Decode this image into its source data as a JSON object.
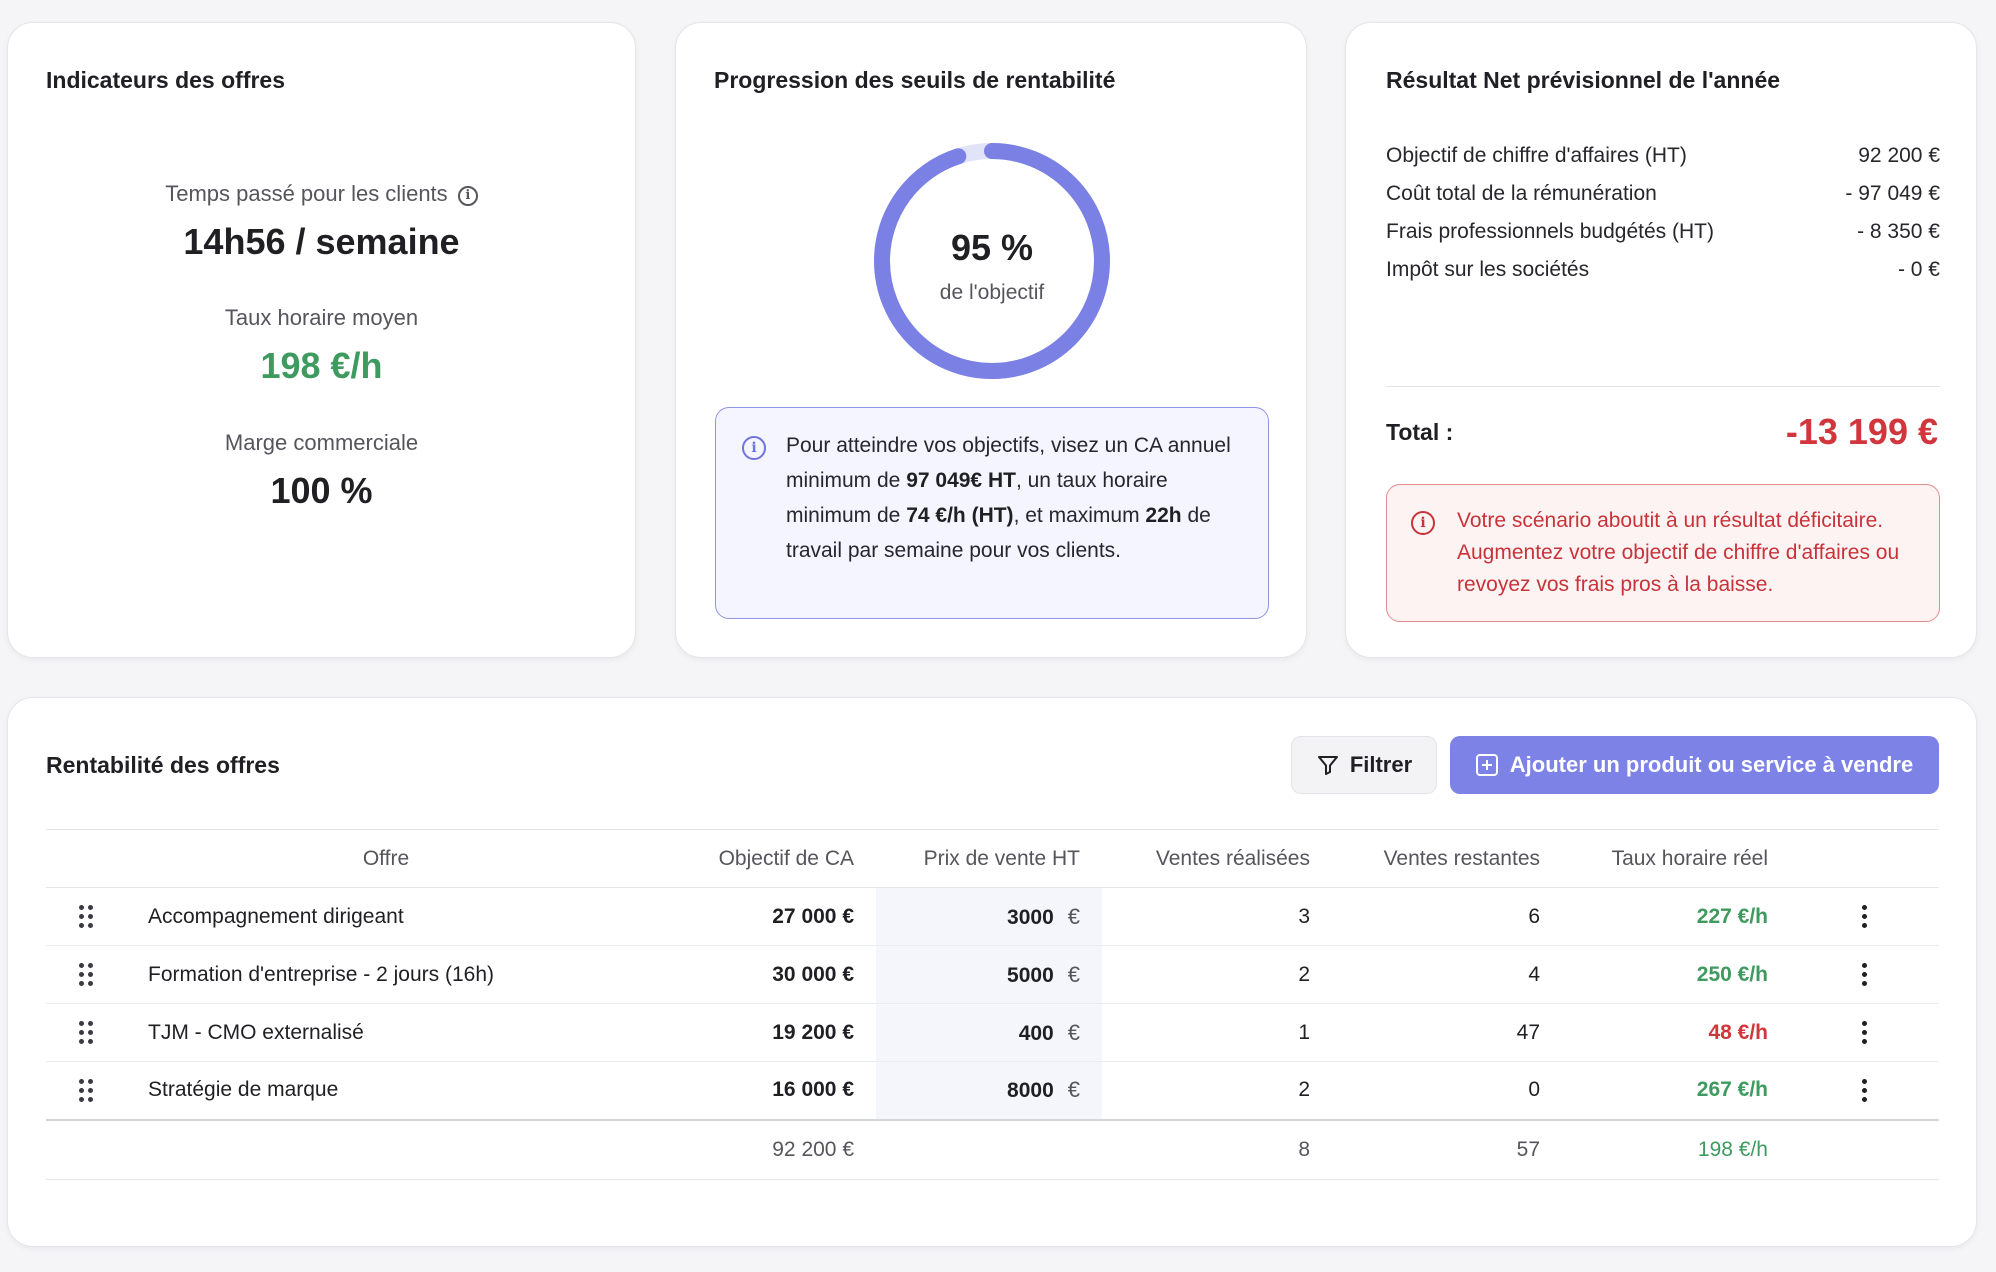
{
  "indicators": {
    "title": "Indicateurs des offres",
    "time_label": "Temps passé pour les clients",
    "time_value": "14h56 / semaine",
    "rate_label": "Taux horaire moyen",
    "rate_value": "198 €/h",
    "margin_label": "Marge commerciale",
    "margin_value": "100 %"
  },
  "progress": {
    "title": "Progression des seuils de rentabilité",
    "percent_label": "95 %",
    "percent": 95,
    "sub_label": "de l'objectif",
    "info": {
      "t1": "Pour atteindre vos objectifs, visez un CA annuel minimum de ",
      "b1": "97 049€ HT",
      "t2": ", un taux horaire minimum de ",
      "b2": "74 €/h (HT)",
      "t3": ", et maximum ",
      "b3": "22h",
      "t4": " de travail par semaine pour vos clients."
    },
    "colors": {
      "ring": "#7b80e4",
      "track": "#e1e3f8"
    }
  },
  "result": {
    "title": "Résultat Net prévisionnel de l'année",
    "rows": [
      {
        "label": "Objectif de chiffre d'affaires (HT)",
        "value": "92 200 €"
      },
      {
        "label": "Coût total de la rémunération",
        "value": "- 97 049 €"
      },
      {
        "label": "Frais professionnels budgétés (HT)",
        "value": "- 8 350 €"
      },
      {
        "label": "Impôt sur les sociétés",
        "value": "- 0 €"
      }
    ],
    "total_label": "Total :",
    "total_value": "-13 199 €",
    "warning": "Votre scénario aboutit à un résultat déficitaire. Augmentez votre objectif de chiffre d'affaires ou revoyez vos frais pros à la baisse."
  },
  "offers": {
    "title": "Rentabilité des offres",
    "filter_label": "Filtrer",
    "add_label": "Ajouter un produit ou service à vendre",
    "columns": {
      "offer": "Offre",
      "ca": "Objectif de CA",
      "price": "Prix de vente HT",
      "sold": "Ventes réalisées",
      "remaining": "Ventes restantes",
      "rate": "Taux horaire réel"
    },
    "rows": [
      {
        "name": "Accompagnement dirigeant",
        "ca": "27 000 €",
        "price": "3000",
        "currency": "€",
        "sold": "3",
        "remaining": "6",
        "rate": "227 €/h",
        "status": "good"
      },
      {
        "name": "Formation d'entreprise - 2 jours (16h)",
        "ca": "30 000 €",
        "price": "5000",
        "currency": "€",
        "sold": "2",
        "remaining": "4",
        "rate": "250 €/h",
        "status": "good"
      },
      {
        "name": "TJM - CMO externalisé",
        "ca": "19 200 €",
        "price": "400",
        "currency": "€",
        "sold": "1",
        "remaining": "47",
        "rate": "48 €/h",
        "status": "bad"
      },
      {
        "name": "Stratégie de marque",
        "ca": "16 000 €",
        "price": "8000",
        "currency": "€",
        "sold": "2",
        "remaining": "0",
        "rate": "267 €/h",
        "status": "good"
      }
    ],
    "totals": {
      "ca": "92 200 €",
      "sold": "8",
      "remaining": "57",
      "rate": "198 €/h"
    }
  }
}
